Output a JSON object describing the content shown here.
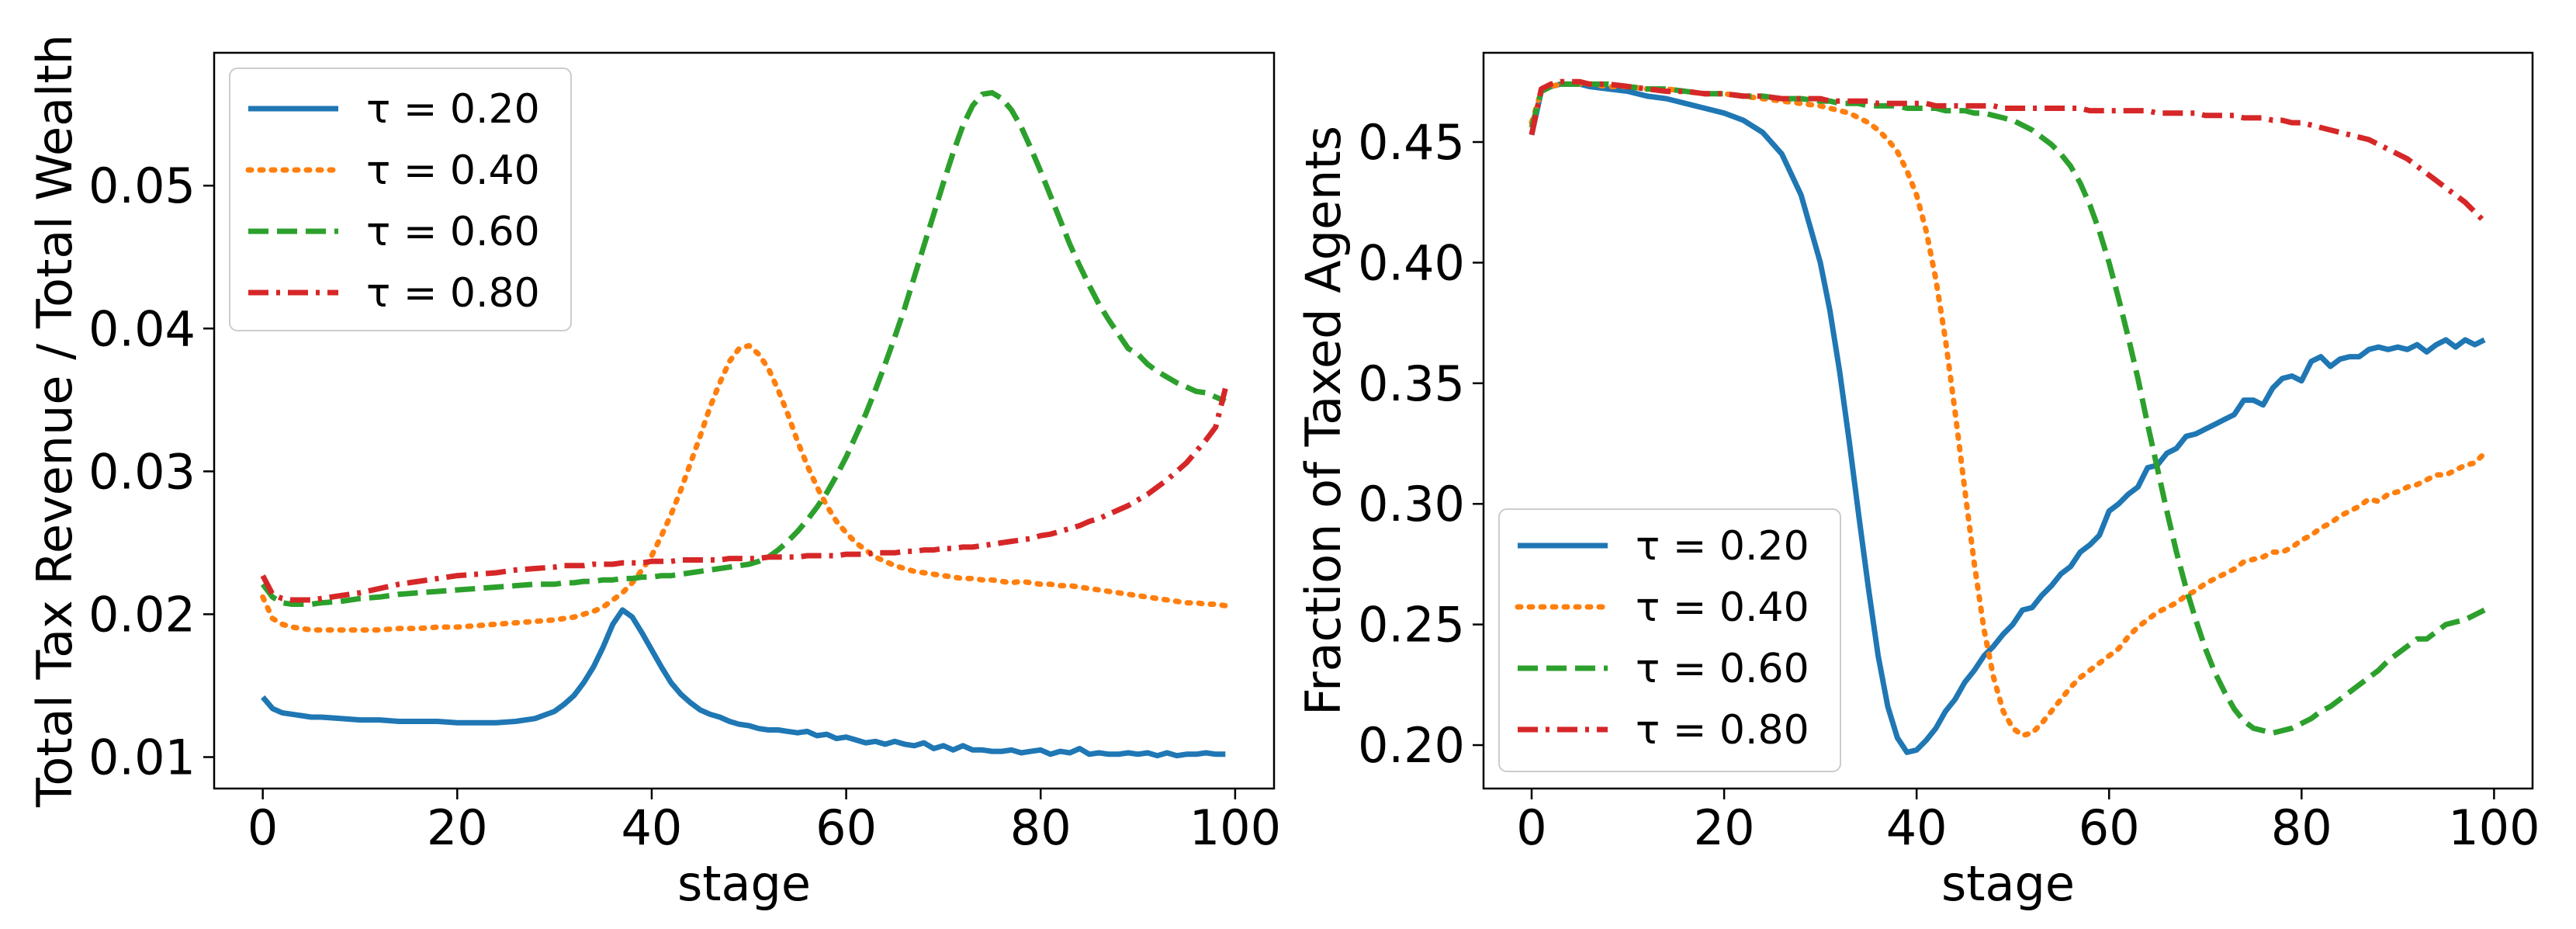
{
  "chart_data": [
    {
      "type": "line",
      "title": "",
      "xlabel": "stage",
      "ylabel": "Total Tax Revenue / Total Wealth",
      "xlim": [
        -5,
        104
      ],
      "ylim": [
        0.0078,
        0.0593
      ],
      "xticks": [
        0,
        20,
        40,
        60,
        80,
        100
      ],
      "xtick_labels": [
        "0",
        "20",
        "40",
        "60",
        "80",
        "100"
      ],
      "yticks": [
        0.01,
        0.02,
        0.03,
        0.04,
        0.05
      ],
      "ytick_labels": [
        "0.01",
        "0.02",
        "0.03",
        "0.04",
        "0.05"
      ],
      "legend_position": "upper-left",
      "x": [
        0,
        1,
        2,
        3,
        4,
        5,
        6,
        8,
        10,
        12,
        14,
        16,
        18,
        20,
        22,
        24,
        26,
        28,
        30,
        31,
        32,
        33,
        34,
        35,
        36,
        37,
        38,
        39,
        40,
        41,
        42,
        43,
        44,
        45,
        46,
        47,
        48,
        49,
        50,
        51,
        52,
        53,
        54,
        55,
        56,
        57,
        58,
        59,
        60,
        61,
        62,
        63,
        64,
        65,
        66,
        67,
        68,
        69,
        70,
        71,
        72,
        73,
        74,
        75,
        76,
        77,
        78,
        79,
        80,
        81,
        82,
        83,
        84,
        85,
        86,
        87,
        88,
        89,
        90,
        91,
        92,
        93,
        94,
        95,
        96,
        97,
        98,
        99
      ],
      "series": [
        {
          "name": "τ = 0.20",
          "color": "#1f77b4",
          "dash": "solid",
          "values": [
            0.0142,
            0.0134,
            0.0131,
            0.013,
            0.0129,
            0.0128,
            0.0128,
            0.0127,
            0.0126,
            0.0126,
            0.0125,
            0.0125,
            0.0125,
            0.0124,
            0.0124,
            0.0124,
            0.0125,
            0.0127,
            0.0132,
            0.0137,
            0.0143,
            0.0152,
            0.0163,
            0.0177,
            0.0193,
            0.0203,
            0.0198,
            0.0187,
            0.0175,
            0.0163,
            0.0152,
            0.0144,
            0.0138,
            0.0133,
            0.013,
            0.0128,
            0.0125,
            0.0123,
            0.0122,
            0.012,
            0.0119,
            0.0119,
            0.0118,
            0.0117,
            0.0118,
            0.0115,
            0.0116,
            0.0113,
            0.0114,
            0.0112,
            0.011,
            0.0111,
            0.0109,
            0.0111,
            0.0109,
            0.0108,
            0.011,
            0.0106,
            0.0108,
            0.0105,
            0.0108,
            0.0105,
            0.0105,
            0.0104,
            0.0104,
            0.0105,
            0.0103,
            0.0104,
            0.0105,
            0.0102,
            0.0104,
            0.0103,
            0.0106,
            0.0102,
            0.0103,
            0.0102,
            0.0102,
            0.0103,
            0.0102,
            0.0103,
            0.0101,
            0.0103,
            0.0101,
            0.0102,
            0.0102,
            0.0103,
            0.0102,
            0.0102
          ]
        },
        {
          "name": "τ = 0.40",
          "color": "#ff7f0e",
          "dash": "dotted",
          "values": [
            0.0212,
            0.0197,
            0.0193,
            0.0191,
            0.019,
            0.0189,
            0.0189,
            0.0189,
            0.0189,
            0.0189,
            0.019,
            0.019,
            0.0191,
            0.0191,
            0.0192,
            0.0193,
            0.0194,
            0.0195,
            0.0196,
            0.0197,
            0.0198,
            0.02,
            0.0202,
            0.0205,
            0.021,
            0.0215,
            0.0222,
            0.0231,
            0.0241,
            0.0255,
            0.027,
            0.0287,
            0.0306,
            0.0325,
            0.0345,
            0.0362,
            0.0377,
            0.0386,
            0.0388,
            0.0382,
            0.0372,
            0.0357,
            0.034,
            0.0321,
            0.0304,
            0.0289,
            0.0276,
            0.0265,
            0.0257,
            0.025,
            0.0245,
            0.024,
            0.0237,
            0.0234,
            0.0232,
            0.023,
            0.0229,
            0.0228,
            0.0227,
            0.0226,
            0.0225,
            0.0225,
            0.0224,
            0.0224,
            0.0223,
            0.0222,
            0.0223,
            0.0222,
            0.0221,
            0.0221,
            0.022,
            0.022,
            0.0219,
            0.0218,
            0.0217,
            0.0216,
            0.0215,
            0.0214,
            0.0213,
            0.0212,
            0.0211,
            0.021,
            0.0209,
            0.0208,
            0.0208,
            0.0207,
            0.0207,
            0.0206
          ]
        },
        {
          "name": "τ = 0.60",
          "color": "#2ca02c",
          "dash": "dashed",
          "values": [
            0.0221,
            0.0212,
            0.0208,
            0.0207,
            0.0207,
            0.0207,
            0.0208,
            0.0209,
            0.0211,
            0.0212,
            0.0214,
            0.0215,
            0.0216,
            0.0217,
            0.0218,
            0.0219,
            0.022,
            0.0221,
            0.0221,
            0.0222,
            0.0222,
            0.0223,
            0.0223,
            0.0224,
            0.0224,
            0.0225,
            0.0225,
            0.0226,
            0.0226,
            0.0227,
            0.0227,
            0.0228,
            0.0229,
            0.023,
            0.0231,
            0.0232,
            0.0233,
            0.0234,
            0.0235,
            0.0237,
            0.024,
            0.0245,
            0.0251,
            0.0258,
            0.0266,
            0.0275,
            0.0285,
            0.0297,
            0.031,
            0.0325,
            0.034,
            0.0357,
            0.0375,
            0.0394,
            0.0414,
            0.0436,
            0.0458,
            0.048,
            0.0502,
            0.0523,
            0.0542,
            0.0556,
            0.0564,
            0.0565,
            0.0561,
            0.0553,
            0.0541,
            0.0526,
            0.051,
            0.0493,
            0.0476,
            0.0459,
            0.0444,
            0.043,
            0.0417,
            0.0406,
            0.0396,
            0.0386,
            0.0382,
            0.0375,
            0.037,
            0.0366,
            0.0362,
            0.0359,
            0.0356,
            0.0355,
            0.0352,
            0.0349
          ]
        },
        {
          "name": "τ = 0.80",
          "color": "#d62728",
          "dash": "dashdot",
          "values": [
            0.0227,
            0.0214,
            0.0211,
            0.021,
            0.021,
            0.021,
            0.0211,
            0.0213,
            0.0215,
            0.0218,
            0.0221,
            0.0223,
            0.0225,
            0.0227,
            0.0228,
            0.0229,
            0.0231,
            0.0232,
            0.0233,
            0.0234,
            0.0234,
            0.0234,
            0.0235,
            0.0235,
            0.0235,
            0.0236,
            0.0236,
            0.0236,
            0.0237,
            0.0237,
            0.0237,
            0.0238,
            0.0238,
            0.0238,
            0.0238,
            0.0238,
            0.0239,
            0.0239,
            0.0239,
            0.0239,
            0.024,
            0.024,
            0.024,
            0.024,
            0.0241,
            0.0241,
            0.0241,
            0.0241,
            0.0242,
            0.0242,
            0.0242,
            0.0243,
            0.0243,
            0.0243,
            0.0244,
            0.0244,
            0.0245,
            0.0245,
            0.0246,
            0.0246,
            0.0247,
            0.0247,
            0.0248,
            0.0249,
            0.025,
            0.0251,
            0.0252,
            0.0253,
            0.0255,
            0.0256,
            0.0258,
            0.026,
            0.0262,
            0.0265,
            0.0267,
            0.027,
            0.0273,
            0.0276,
            0.028,
            0.0284,
            0.0289,
            0.0294,
            0.03,
            0.0306,
            0.0314,
            0.0322,
            0.0331,
            0.0358
          ]
        }
      ]
    },
    {
      "type": "line",
      "title": "",
      "xlabel": "stage",
      "ylabel": "Fraction of Taxed Agents",
      "xlim": [
        -5,
        104
      ],
      "ylim": [
        0.182,
        0.487
      ],
      "xticks": [
        0,
        20,
        40,
        60,
        80,
        100
      ],
      "xtick_labels": [
        "0",
        "20",
        "40",
        "60",
        "80",
        "100"
      ],
      "yticks": [
        0.2,
        0.25,
        0.3,
        0.35,
        0.4,
        0.45
      ],
      "ytick_labels": [
        "0.20",
        "0.25",
        "0.30",
        "0.35",
        "0.40",
        "0.45"
      ],
      "legend_position": "lower-left",
      "x": [
        0,
        1,
        2,
        3,
        4,
        5,
        6,
        8,
        10,
        12,
        14,
        16,
        18,
        20,
        22,
        24,
        26,
        28,
        30,
        31,
        32,
        33,
        34,
        35,
        36,
        37,
        38,
        39,
        40,
        41,
        42,
        43,
        44,
        45,
        46,
        47,
        48,
        49,
        50,
        51,
        52,
        53,
        54,
        55,
        56,
        57,
        58,
        59,
        60,
        61,
        62,
        63,
        64,
        65,
        66,
        67,
        68,
        69,
        70,
        71,
        72,
        73,
        74,
        75,
        76,
        77,
        78,
        79,
        80,
        81,
        82,
        83,
        84,
        85,
        86,
        87,
        88,
        89,
        90,
        91,
        92,
        93,
        94,
        95,
        96,
        97,
        98,
        99
      ],
      "series": [
        {
          "name": "τ = 0.20",
          "color": "#1f77b4",
          "dash": "solid",
          "values": [
            0.453,
            0.471,
            0.473,
            0.474,
            0.474,
            0.474,
            0.473,
            0.472,
            0.471,
            0.469,
            0.468,
            0.466,
            0.464,
            0.462,
            0.459,
            0.454,
            0.445,
            0.428,
            0.4,
            0.38,
            0.355,
            0.326,
            0.295,
            0.265,
            0.237,
            0.216,
            0.203,
            0.197,
            0.198,
            0.202,
            0.207,
            0.214,
            0.219,
            0.226,
            0.231,
            0.237,
            0.241,
            0.246,
            0.25,
            0.256,
            0.257,
            0.262,
            0.266,
            0.271,
            0.274,
            0.28,
            0.283,
            0.287,
            0.297,
            0.3,
            0.304,
            0.307,
            0.315,
            0.316,
            0.321,
            0.323,
            0.328,
            0.329,
            0.331,
            0.333,
            0.335,
            0.337,
            0.343,
            0.343,
            0.341,
            0.348,
            0.352,
            0.353,
            0.351,
            0.359,
            0.361,
            0.357,
            0.36,
            0.361,
            0.361,
            0.364,
            0.365,
            0.364,
            0.365,
            0.364,
            0.366,
            0.363,
            0.366,
            0.368,
            0.365,
            0.368,
            0.366,
            0.368
          ]
        },
        {
          "name": "τ = 0.40",
          "color": "#ff7f0e",
          "dash": "dotted",
          "values": [
            0.458,
            0.471,
            0.473,
            0.474,
            0.474,
            0.474,
            0.474,
            0.473,
            0.473,
            0.472,
            0.472,
            0.471,
            0.47,
            0.47,
            0.469,
            0.468,
            0.467,
            0.466,
            0.465,
            0.464,
            0.463,
            0.462,
            0.46,
            0.458,
            0.455,
            0.451,
            0.446,
            0.438,
            0.428,
            0.413,
            0.393,
            0.368,
            0.338,
            0.306,
            0.275,
            0.248,
            0.228,
            0.214,
            0.207,
            0.204,
            0.205,
            0.209,
            0.214,
            0.219,
            0.224,
            0.228,
            0.231,
            0.234,
            0.237,
            0.24,
            0.245,
            0.249,
            0.252,
            0.255,
            0.257,
            0.259,
            0.262,
            0.264,
            0.267,
            0.269,
            0.271,
            0.273,
            0.276,
            0.277,
            0.278,
            0.28,
            0.28,
            0.282,
            0.285,
            0.287,
            0.29,
            0.292,
            0.295,
            0.297,
            0.299,
            0.302,
            0.301,
            0.304,
            0.305,
            0.307,
            0.308,
            0.31,
            0.312,
            0.312,
            0.314,
            0.316,
            0.317,
            0.321
          ]
        },
        {
          "name": "τ = 0.60",
          "color": "#2ca02c",
          "dash": "dashed",
          "values": [
            0.456,
            0.471,
            0.473,
            0.474,
            0.474,
            0.474,
            0.474,
            0.474,
            0.473,
            0.472,
            0.472,
            0.471,
            0.47,
            0.47,
            0.469,
            0.469,
            0.468,
            0.468,
            0.467,
            0.467,
            0.466,
            0.466,
            0.466,
            0.465,
            0.465,
            0.465,
            0.465,
            0.464,
            0.464,
            0.464,
            0.464,
            0.463,
            0.463,
            0.463,
            0.462,
            0.462,
            0.461,
            0.46,
            0.459,
            0.457,
            0.455,
            0.452,
            0.449,
            0.445,
            0.44,
            0.433,
            0.424,
            0.413,
            0.4,
            0.385,
            0.369,
            0.352,
            0.333,
            0.315,
            0.297,
            0.28,
            0.265,
            0.252,
            0.24,
            0.23,
            0.222,
            0.215,
            0.21,
            0.207,
            0.206,
            0.205,
            0.206,
            0.207,
            0.209,
            0.211,
            0.214,
            0.216,
            0.219,
            0.222,
            0.225,
            0.228,
            0.231,
            0.235,
            0.238,
            0.241,
            0.244,
            0.244,
            0.247,
            0.25,
            0.251,
            0.252,
            0.254,
            0.256
          ]
        },
        {
          "name": "τ = 0.80",
          "color": "#d62728",
          "dash": "dashdot",
          "values": [
            0.453,
            0.472,
            0.474,
            0.475,
            0.475,
            0.475,
            0.474,
            0.474,
            0.473,
            0.472,
            0.471,
            0.471,
            0.47,
            0.47,
            0.469,
            0.469,
            0.468,
            0.468,
            0.468,
            0.467,
            0.467,
            0.467,
            0.467,
            0.467,
            0.466,
            0.466,
            0.466,
            0.466,
            0.466,
            0.466,
            0.465,
            0.465,
            0.465,
            0.465,
            0.465,
            0.465,
            0.465,
            0.464,
            0.464,
            0.464,
            0.464,
            0.464,
            0.464,
            0.464,
            0.464,
            0.464,
            0.463,
            0.463,
            0.463,
            0.463,
            0.463,
            0.463,
            0.463,
            0.462,
            0.462,
            0.462,
            0.462,
            0.462,
            0.461,
            0.461,
            0.461,
            0.461,
            0.46,
            0.46,
            0.46,
            0.459,
            0.459,
            0.458,
            0.458,
            0.457,
            0.456,
            0.455,
            0.454,
            0.453,
            0.452,
            0.451,
            0.449,
            0.447,
            0.445,
            0.443,
            0.44,
            0.437,
            0.434,
            0.431,
            0.428,
            0.425,
            0.421,
            0.417
          ]
        }
      ]
    }
  ]
}
